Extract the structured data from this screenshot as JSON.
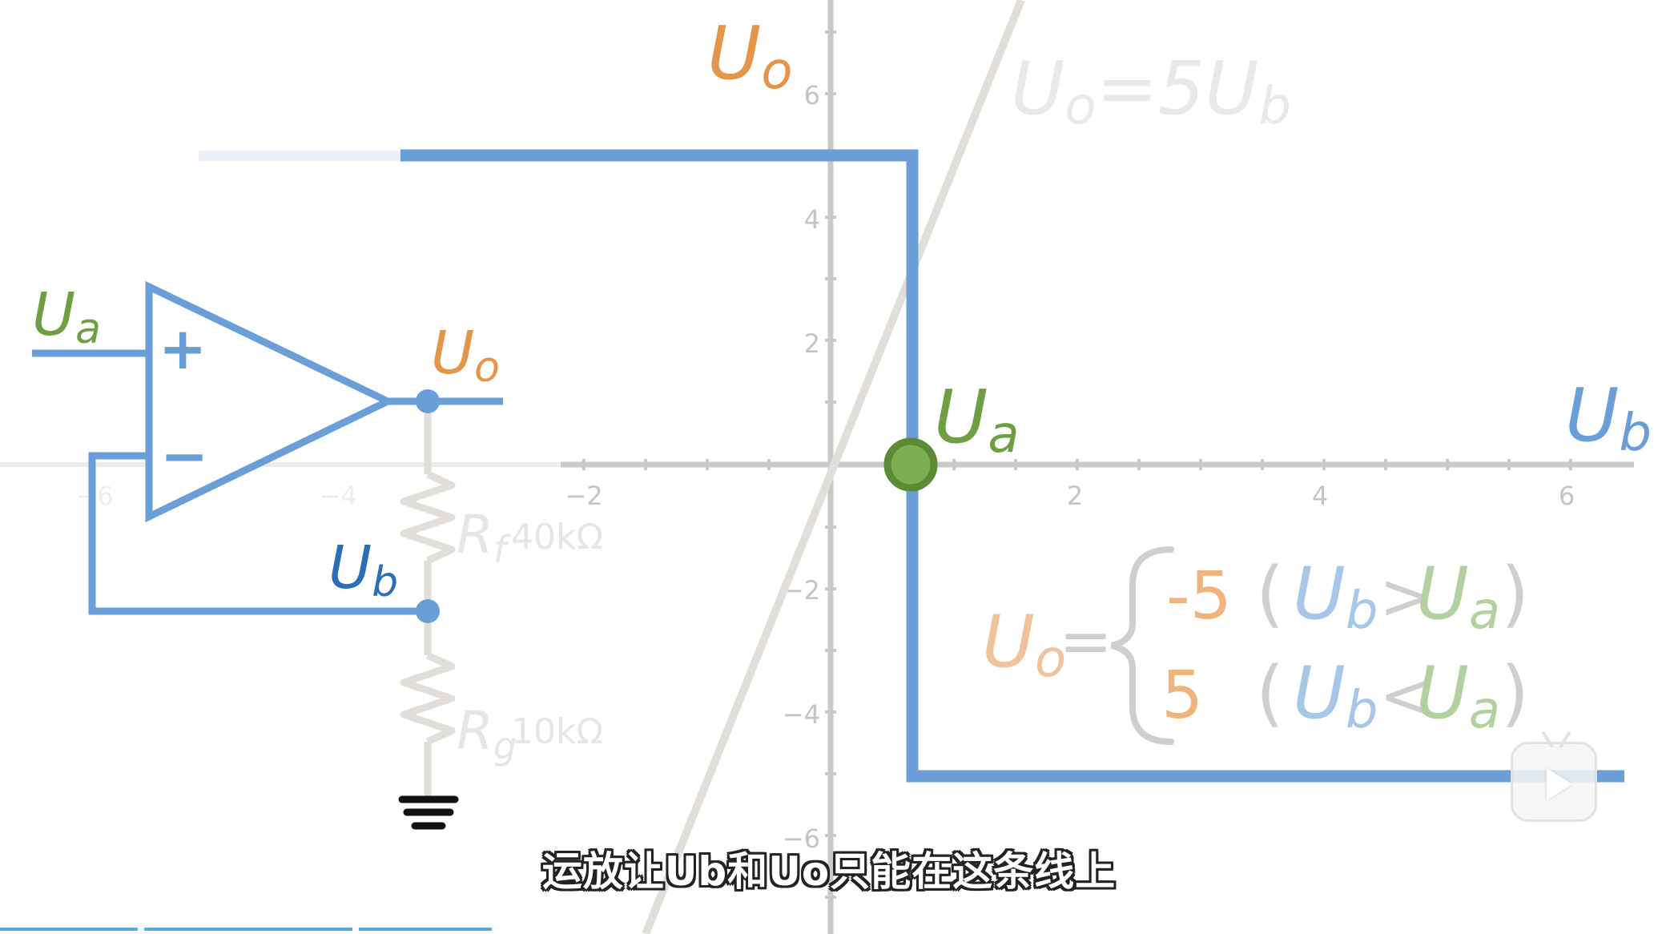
{
  "axes": {
    "y_label": "U",
    "y_label_sub": "o",
    "x_label": "U",
    "x_label_sub": "b",
    "x_ticks": [
      "−2",
      "2",
      "4",
      "6"
    ],
    "y_ticks": [
      "6",
      "4",
      "2",
      "−2",
      "−4",
      "−6"
    ],
    "faded_x_ticks": [
      "−6",
      "−4"
    ]
  },
  "transfer_line": {
    "label": "U",
    "label_sub": "o",
    "label_eq": "=5U",
    "label_eq_sub": "b"
  },
  "point": {
    "label": "U",
    "label_sub": "a"
  },
  "circuit": {
    "input_label": "U",
    "input_label_sub": "a",
    "output_label": "U",
    "output_label_sub": "o",
    "feedback_label": "U",
    "feedback_label_sub": "b",
    "plus": "+",
    "minus": "−",
    "rf_label": "R",
    "rf_sub": "f",
    "rf_value": "40kΩ",
    "rg_label": "R",
    "rg_sub": "g",
    "rg_value": "10kΩ"
  },
  "formula": {
    "lhs": "U",
    "lhs_sub": "o",
    "eq": "=",
    "case1_value": "-5",
    "case1_u1": "U",
    "case1_u1_sub": "b",
    "case1_op": ">",
    "case1_u2": "U",
    "case1_u2_sub": "a",
    "case2_value": "5",
    "case2_u1": "U",
    "case2_u1_sub": "b",
    "case2_op": "<",
    "case2_u2": "U",
    "case2_u2_sub": "a"
  },
  "subtitle": "运放让Ub和Uo只能在这条线上",
  "colors": {
    "blue": "#6a9ed6",
    "orange": "#e39649",
    "green": "#6f9e43",
    "axis": "#c9c9c9",
    "faded": "#e2dfdb"
  }
}
